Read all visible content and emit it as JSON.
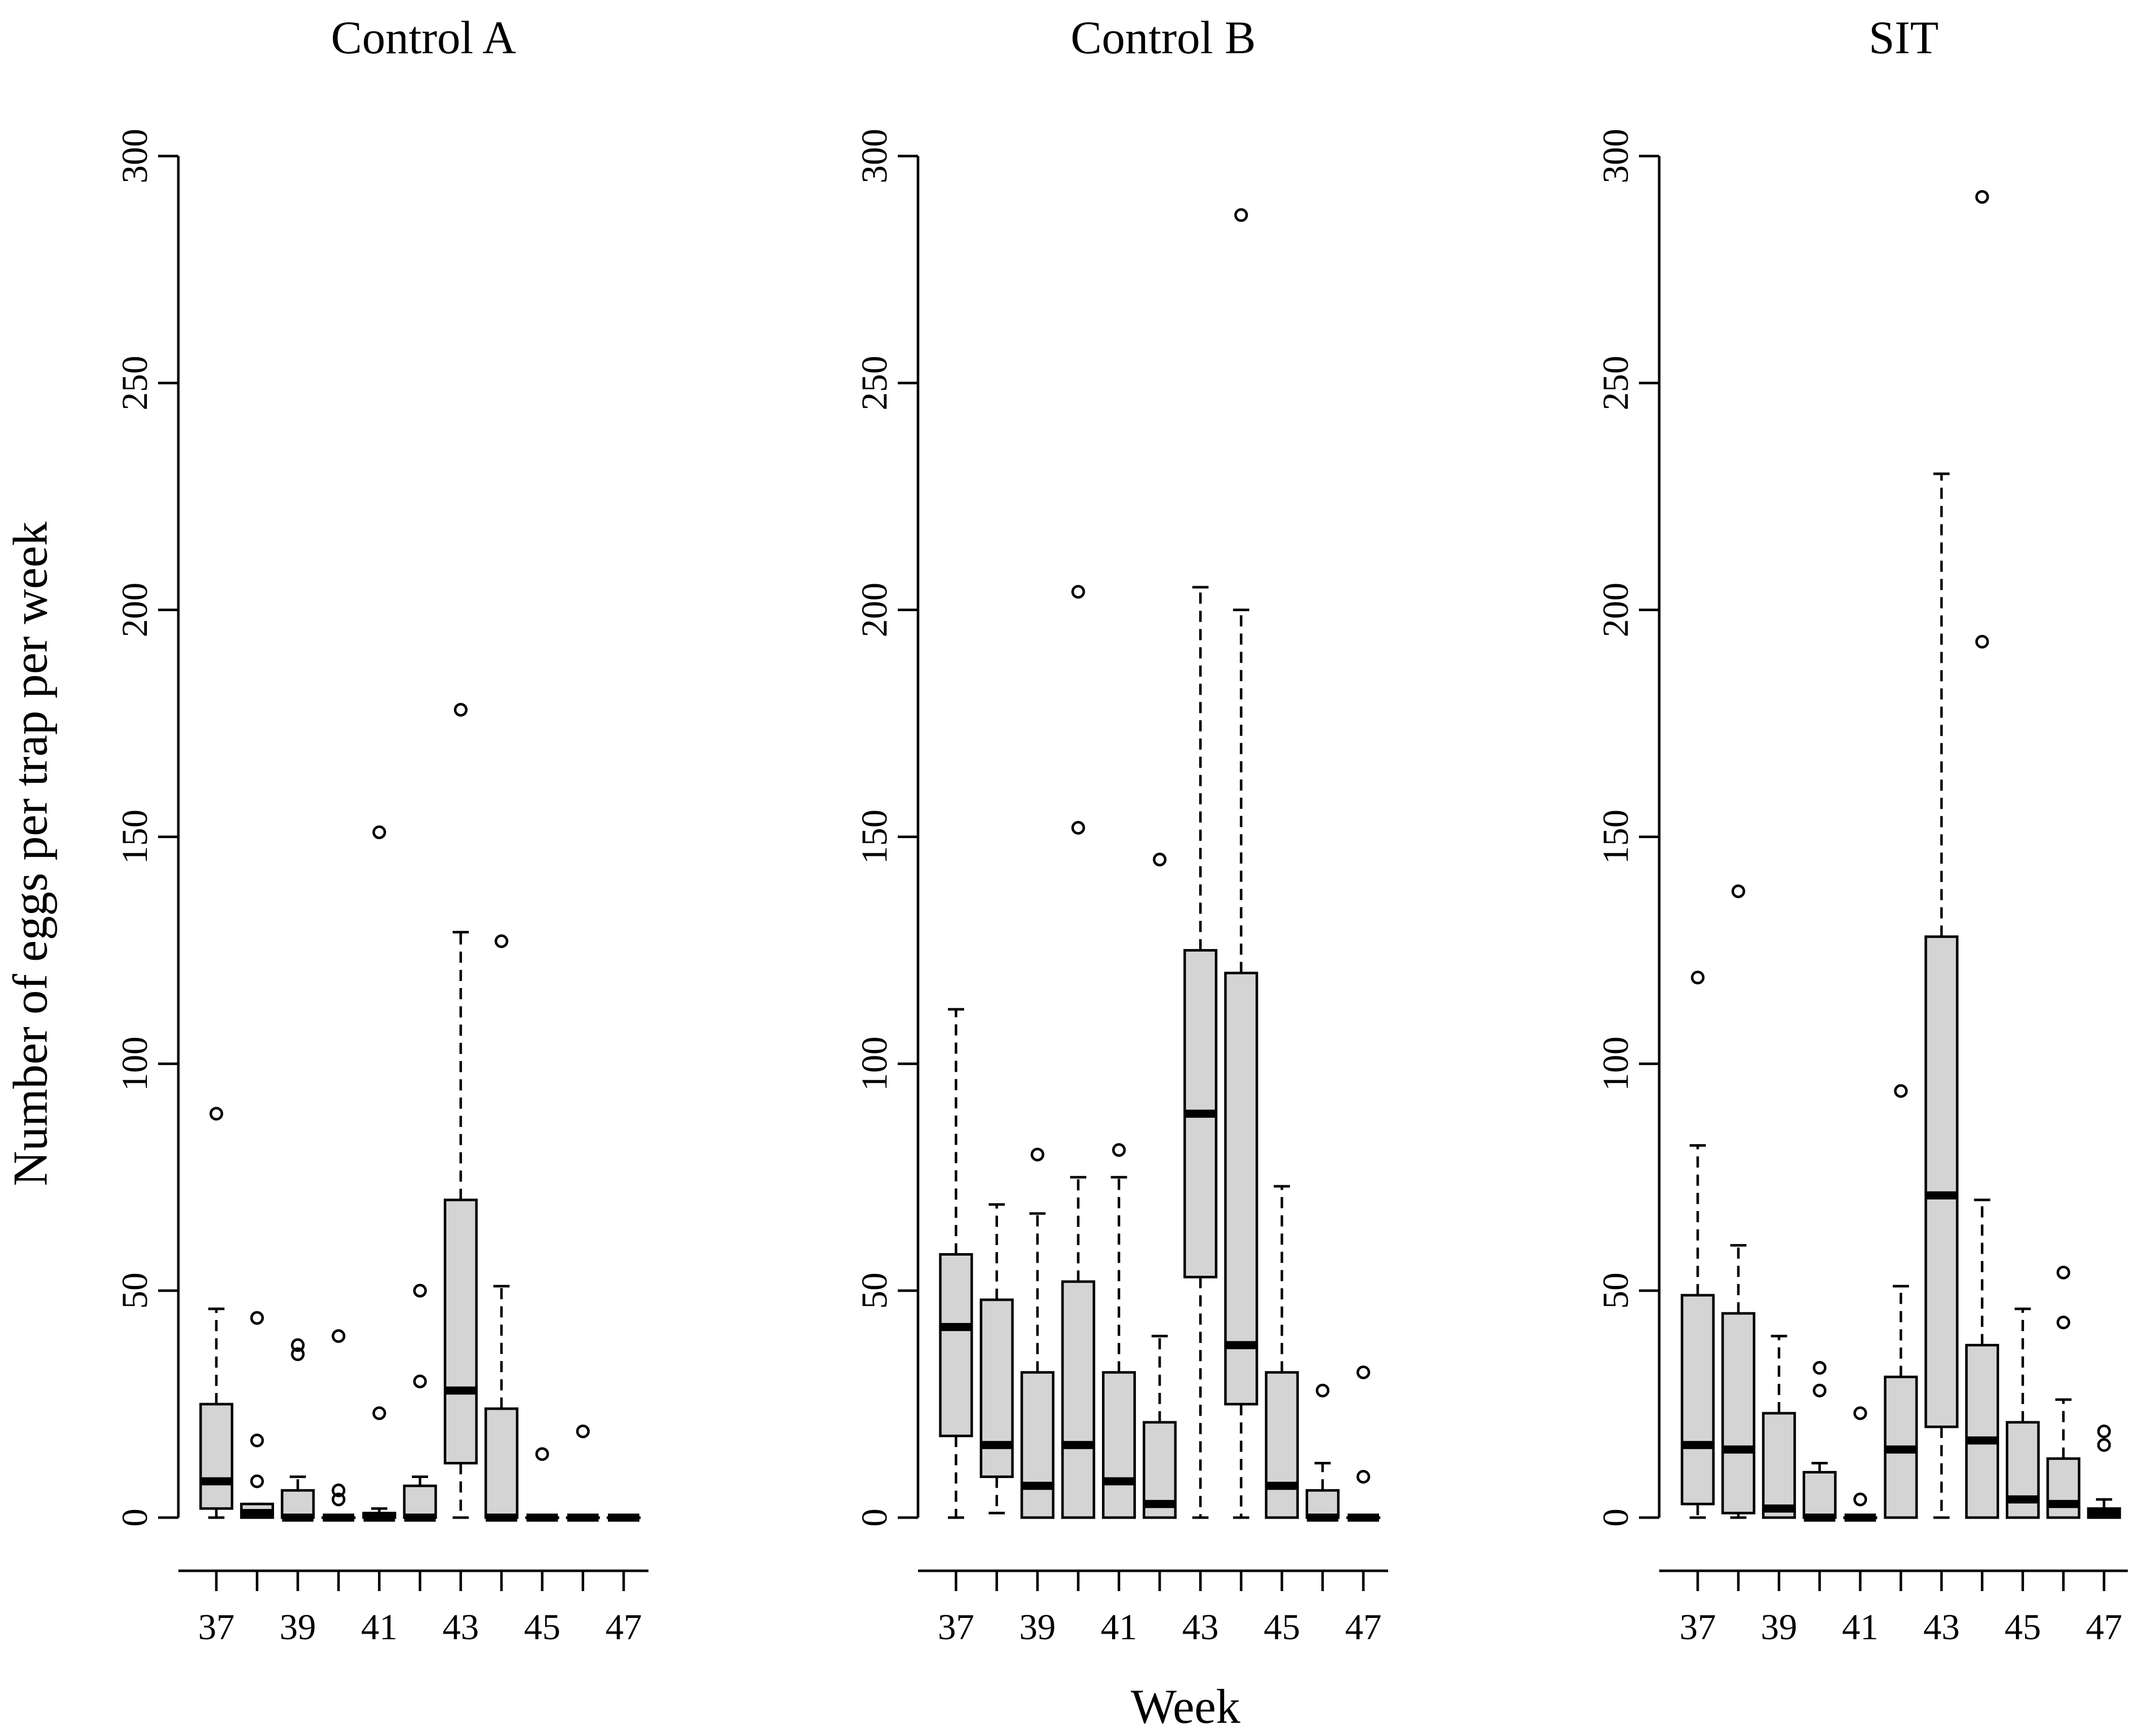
{
  "figure": {
    "ylabel": "Number of eggs per trap per week",
    "xlabel": "Week"
  },
  "colors": {
    "box_fill": "#d4d4d4",
    "line": "#000000",
    "background": "#ffffff"
  },
  "chart_data": [
    {
      "type": "boxplot",
      "title": "Control A",
      "xlabel": "Week",
      "ylabel": "Number of eggs per trap per week",
      "ylim": [
        0,
        300
      ],
      "yticks": [
        0,
        50,
        100,
        150,
        200,
        250,
        300
      ],
      "ytick_labels": [
        "0",
        "50",
        "100",
        "150",
        "200",
        "250",
        "300"
      ],
      "xtick_labels": [
        "37",
        "39",
        "41",
        "43",
        "45",
        "47"
      ],
      "categories": [
        37,
        38,
        39,
        40,
        41,
        42,
        43,
        44,
        45,
        46,
        47
      ],
      "boxes": [
        {
          "week": 37,
          "whisker_low": 0,
          "q1": 2,
          "median": 8,
          "q3": 25,
          "whisker_high": 46,
          "outliers": [
            89
          ]
        },
        {
          "week": 38,
          "whisker_low": 0,
          "q1": 0,
          "median": 1,
          "q3": 3,
          "whisker_high": 3,
          "outliers": [
            8,
            17,
            44
          ]
        },
        {
          "week": 39,
          "whisker_low": 0,
          "q1": 0,
          "median": 0,
          "q3": 6,
          "whisker_high": 9,
          "outliers": [
            36,
            38
          ]
        },
        {
          "week": 40,
          "whisker_low": 0,
          "q1": 0,
          "median": 0,
          "q3": 0,
          "whisker_high": 0,
          "outliers": [
            4,
            6,
            40
          ]
        },
        {
          "week": 41,
          "whisker_low": 0,
          "q1": 0,
          "median": 0,
          "q3": 1,
          "whisker_high": 2,
          "outliers": [
            23,
            151
          ]
        },
        {
          "week": 42,
          "whisker_low": 0,
          "q1": 0,
          "median": 0,
          "q3": 7,
          "whisker_high": 9,
          "outliers": [
            30,
            50
          ]
        },
        {
          "week": 43,
          "whisker_low": 0,
          "q1": 12,
          "median": 28,
          "q3": 70,
          "whisker_high": 129,
          "outliers": [
            178
          ]
        },
        {
          "week": 44,
          "whisker_low": 0,
          "q1": 0,
          "median": 0,
          "q3": 24,
          "whisker_high": 51,
          "outliers": [
            127
          ]
        },
        {
          "week": 45,
          "whisker_low": 0,
          "q1": 0,
          "median": 0,
          "q3": 0,
          "whisker_high": 0,
          "outliers": [
            14
          ]
        },
        {
          "week": 46,
          "whisker_low": 0,
          "q1": 0,
          "median": 0,
          "q3": 0,
          "whisker_high": 0,
          "outliers": [
            19
          ]
        },
        {
          "week": 47,
          "whisker_low": 0,
          "q1": 0,
          "median": 0,
          "q3": 0,
          "whisker_high": 0,
          "outliers": []
        }
      ]
    },
    {
      "type": "boxplot",
      "title": "Control B",
      "xlabel": "Week",
      "ylabel": "Number of eggs per trap per week",
      "ylim": [
        0,
        300
      ],
      "yticks": [
        0,
        50,
        100,
        150,
        200,
        250,
        300
      ],
      "ytick_labels": [
        "0",
        "50",
        "100",
        "150",
        "200",
        "250",
        "300"
      ],
      "xtick_labels": [
        "37",
        "39",
        "41",
        "43",
        "45",
        "47"
      ],
      "categories": [
        37,
        38,
        39,
        40,
        41,
        42,
        43,
        44,
        45,
        46,
        47
      ],
      "boxes": [
        {
          "week": 37,
          "whisker_low": 0,
          "q1": 18,
          "median": 42,
          "q3": 58,
          "whisker_high": 112,
          "outliers": []
        },
        {
          "week": 38,
          "whisker_low": 1,
          "q1": 9,
          "median": 16,
          "q3": 48,
          "whisker_high": 69,
          "outliers": []
        },
        {
          "week": 39,
          "whisker_low": 0,
          "q1": 0,
          "median": 7,
          "q3": 32,
          "whisker_high": 67,
          "outliers": [
            80
          ]
        },
        {
          "week": 40,
          "whisker_low": 0,
          "q1": 0,
          "median": 16,
          "q3": 52,
          "whisker_high": 75,
          "outliers": [
            152,
            204
          ]
        },
        {
          "week": 41,
          "whisker_low": 0,
          "q1": 0,
          "median": 8,
          "q3": 32,
          "whisker_high": 75,
          "outliers": [
            81
          ]
        },
        {
          "week": 42,
          "whisker_low": 0,
          "q1": 0,
          "median": 3,
          "q3": 21,
          "whisker_high": 40,
          "outliers": [
            145
          ]
        },
        {
          "week": 43,
          "whisker_low": 0,
          "q1": 53,
          "median": 89,
          "q3": 125,
          "whisker_high": 205,
          "outliers": []
        },
        {
          "week": 44,
          "whisker_low": 0,
          "q1": 25,
          "median": 38,
          "q3": 120,
          "whisker_high": 200,
          "outliers": [
            287
          ]
        },
        {
          "week": 45,
          "whisker_low": 0,
          "q1": 0,
          "median": 7,
          "q3": 32,
          "whisker_high": 73,
          "outliers": []
        },
        {
          "week": 46,
          "whisker_low": 0,
          "q1": 0,
          "median": 0,
          "q3": 6,
          "whisker_high": 12,
          "outliers": [
            28
          ]
        },
        {
          "week": 47,
          "whisker_low": 0,
          "q1": 0,
          "median": 0,
          "q3": 0,
          "whisker_high": 0,
          "outliers": [
            9,
            32
          ]
        }
      ]
    },
    {
      "type": "boxplot",
      "title": "SIT",
      "xlabel": "Week",
      "ylabel": "Number of eggs per trap per week",
      "ylim": [
        0,
        300
      ],
      "yticks": [
        0,
        50,
        100,
        150,
        200,
        250,
        300
      ],
      "ytick_labels": [
        "0",
        "50",
        "100",
        "150",
        "200",
        "250",
        "300"
      ],
      "xtick_labels": [
        "37",
        "39",
        "41",
        "43",
        "45",
        "47"
      ],
      "categories": [
        37,
        38,
        39,
        40,
        41,
        42,
        43,
        44,
        45,
        46,
        47
      ],
      "boxes": [
        {
          "week": 37,
          "whisker_low": 0,
          "q1": 3,
          "median": 16,
          "q3": 49,
          "whisker_high": 82,
          "outliers": [
            119
          ]
        },
        {
          "week": 38,
          "whisker_low": 0,
          "q1": 1,
          "median": 15,
          "q3": 45,
          "whisker_high": 60,
          "outliers": [
            138
          ]
        },
        {
          "week": 39,
          "whisker_low": 0,
          "q1": 0,
          "median": 2,
          "q3": 23,
          "whisker_high": 40,
          "outliers": []
        },
        {
          "week": 40,
          "whisker_low": 0,
          "q1": 0,
          "median": 0,
          "q3": 10,
          "whisker_high": 12,
          "outliers": [
            28,
            33
          ]
        },
        {
          "week": 41,
          "whisker_low": 0,
          "q1": 0,
          "median": 0,
          "q3": 0,
          "whisker_high": 0,
          "outliers": [
            4,
            23
          ]
        },
        {
          "week": 42,
          "whisker_low": 0,
          "q1": 0,
          "median": 15,
          "q3": 31,
          "whisker_high": 51,
          "outliers": [
            94
          ]
        },
        {
          "week": 43,
          "whisker_low": 0,
          "q1": 20,
          "median": 71,
          "q3": 128,
          "whisker_high": 230,
          "outliers": []
        },
        {
          "week": 44,
          "whisker_low": 0,
          "q1": 0,
          "median": 17,
          "q3": 38,
          "whisker_high": 70,
          "outliers": [
            193,
            291
          ]
        },
        {
          "week": 45,
          "whisker_low": 0,
          "q1": 0,
          "median": 4,
          "q3": 21,
          "whisker_high": 46,
          "outliers": []
        },
        {
          "week": 46,
          "whisker_low": 0,
          "q1": 0,
          "median": 3,
          "q3": 13,
          "whisker_high": 26,
          "outliers": [
            43,
            54
          ]
        },
        {
          "week": 47,
          "whisker_low": 0,
          "q1": 0,
          "median": 1,
          "q3": 2,
          "whisker_high": 4,
          "outliers": [
            16,
            19
          ]
        }
      ]
    }
  ]
}
